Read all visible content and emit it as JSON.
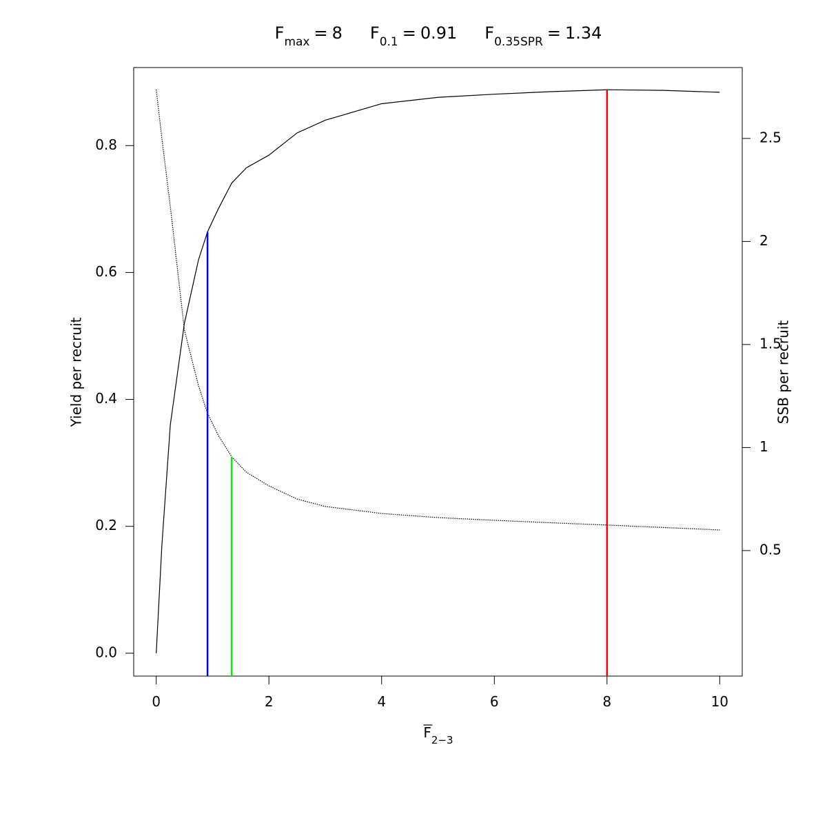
{
  "chart_data": {
    "type": "line",
    "reference_lines": [
      {
        "symbol": "F",
        "subscript": "max",
        "relation": "=",
        "x": 8,
        "color": "#ff0000",
        "top": 0.888,
        "axis": "y"
      },
      {
        "symbol": "F",
        "subscript": "0.1",
        "relation": "=",
        "x": 0.91,
        "color": "#0000ff",
        "top": 0.664,
        "axis": "y"
      },
      {
        "symbol": "F",
        "subscript": "0.35SPR",
        "relation": "=",
        "x": 1.34,
        "color": "#00ee00",
        "top": 0.955,
        "axis": "y2"
      }
    ],
    "xlabel": {
      "symbol": "F",
      "subscript": "2−3"
    },
    "ylabel": "Yield per recruit",
    "y2label": "SSB per recruit",
    "series": [
      {
        "color": "#000000",
        "style": "solid",
        "axis": "y",
        "x": [
          0,
          0.1,
          0.25,
          0.5,
          0.75,
          0.91,
          1.1,
          1.34,
          1.6,
          2,
          2.5,
          3,
          4,
          5,
          6,
          7,
          8,
          9,
          10
        ],
        "values": [
          0,
          0.17,
          0.36,
          0.52,
          0.62,
          0.664,
          0.7,
          0.741,
          0.765,
          0.785,
          0.82,
          0.84,
          0.866,
          0.876,
          0.881,
          0.885,
          0.888,
          0.887,
          0.884
        ]
      },
      {
        "color": "#000000",
        "style": "dotted",
        "axis": "y2",
        "x": [
          0,
          0.1,
          0.25,
          0.5,
          0.75,
          0.91,
          1.1,
          1.34,
          1.6,
          2,
          2.5,
          3,
          4,
          5,
          6,
          7,
          8,
          9,
          10
        ],
        "values": [
          2.737,
          2.5,
          2.17,
          1.57,
          1.3,
          1.166,
          1.06,
          0.955,
          0.88,
          0.814,
          0.75,
          0.714,
          0.68,
          0.66,
          0.647,
          0.635,
          0.624,
          0.612,
          0.6
        ]
      }
    ],
    "xlim": [
      -0.4,
      10.4
    ],
    "xticks": [
      0,
      2,
      4,
      6,
      8,
      10
    ],
    "ylim": [
      -0.036,
      0.923
    ],
    "yticks": [
      {
        "value": 0,
        "label": "0.0"
      },
      0.2,
      0.4,
      0.6,
      0.8
    ],
    "y2lim": [
      -0.109,
      2.844
    ],
    "y2ticks": [
      0.5,
      1,
      1.5,
      2,
      2.5
    ],
    "grid": false
  }
}
